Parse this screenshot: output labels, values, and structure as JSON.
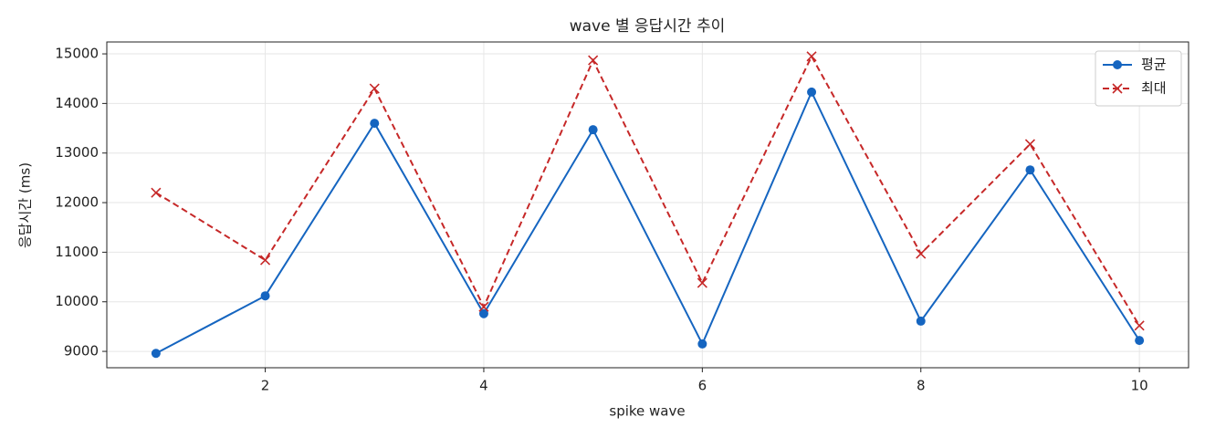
{
  "chart_data": {
    "type": "line",
    "title": "wave 별 응답시간 추이",
    "x_label": "spike wave",
    "y_label": "응답시간 (ms)",
    "x": [
      1,
      2,
      3,
      4,
      5,
      6,
      7,
      8,
      9,
      10
    ],
    "series": [
      {
        "name": "평균",
        "color": "#1565c0",
        "linestyle": "solid",
        "marker": "o",
        "values": [
          8960,
          10120,
          13600,
          9760,
          13470,
          9150,
          14230,
          9610,
          12660,
          9220
        ]
      },
      {
        "name": "최대",
        "color": "#c62828",
        "linestyle": "dashed",
        "marker": "x",
        "values": [
          12200,
          10840,
          14300,
          9900,
          14870,
          10380,
          14950,
          10970,
          13180,
          9520
        ]
      }
    ],
    "xlim": [
      0.55,
      10.45
    ],
    "ylim": [
      8670,
      15240
    ],
    "xticks": [
      2,
      4,
      6,
      8,
      10
    ],
    "yticks": [
      9000,
      10000,
      11000,
      12000,
      13000,
      14000,
      15000
    ],
    "grid": true,
    "legend": "upper right"
  }
}
